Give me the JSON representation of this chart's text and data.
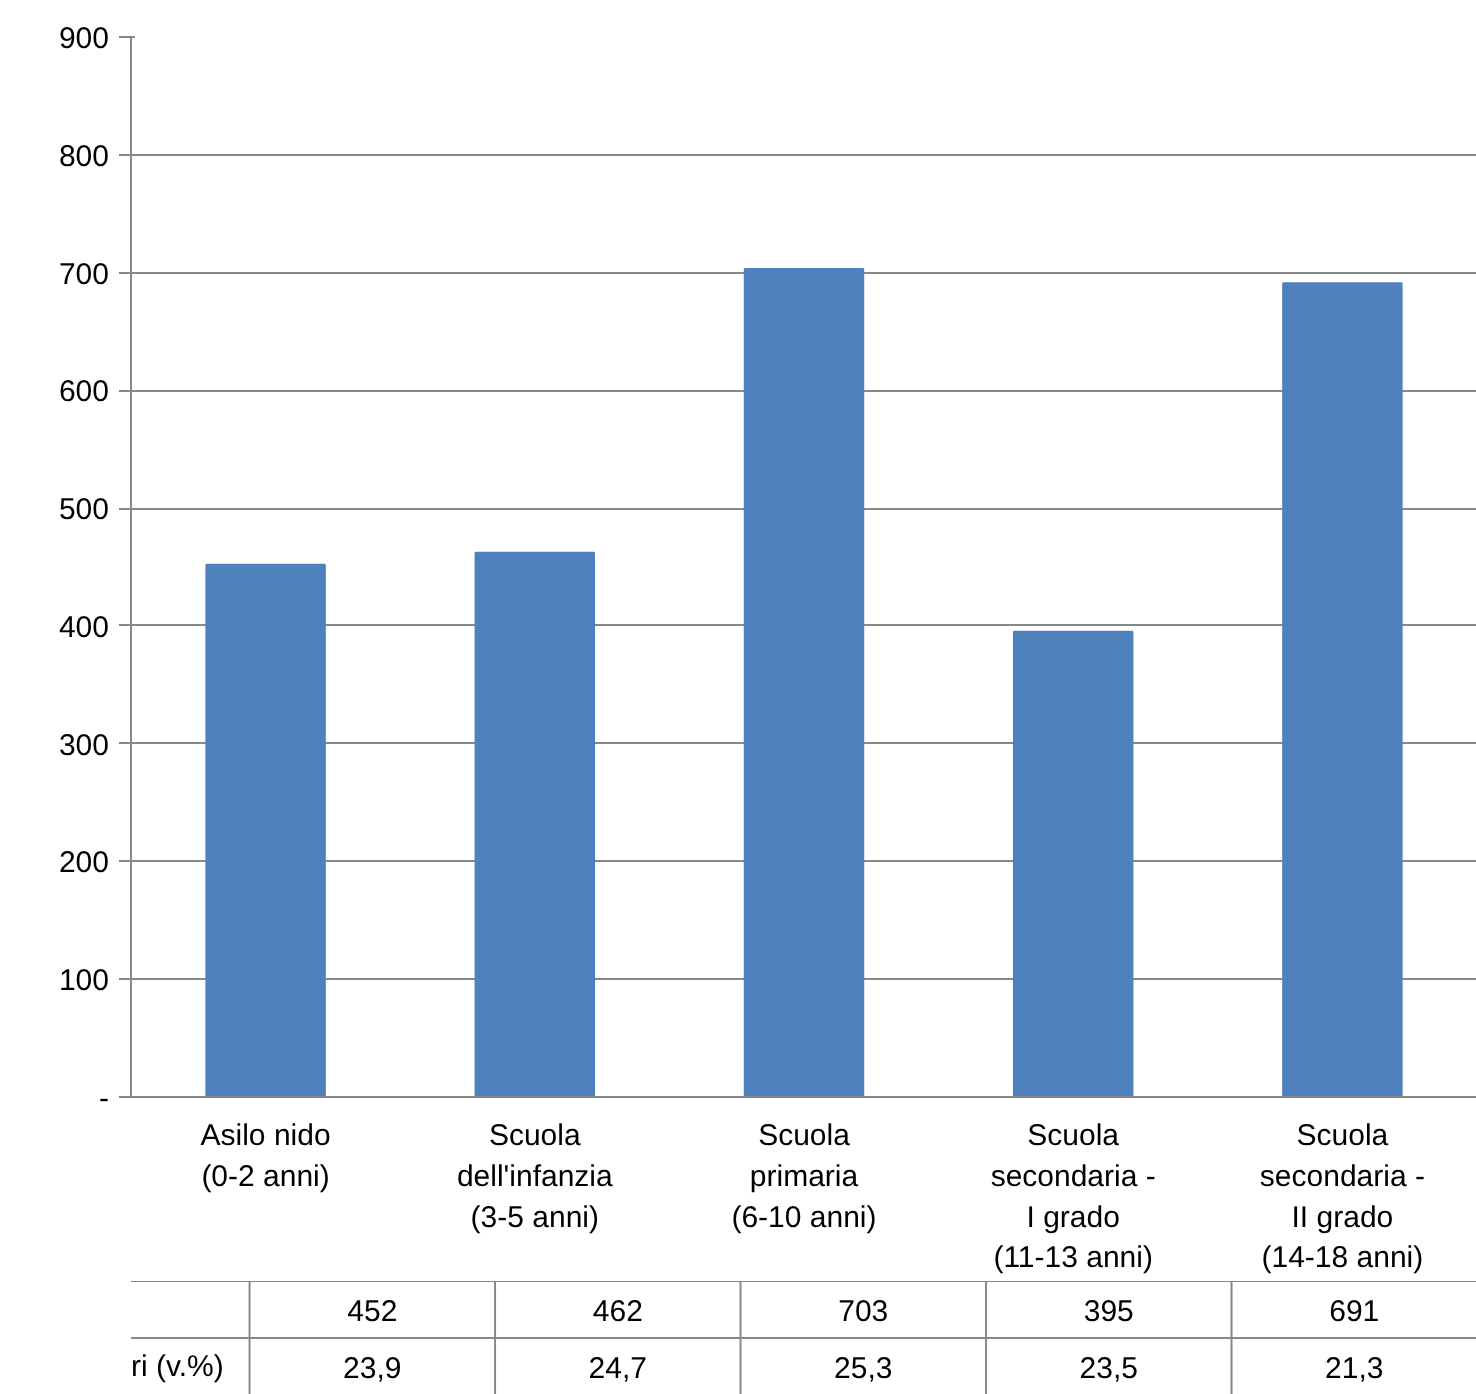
{
  "chart_data": {
    "type": "bar",
    "categories": [
      "Asilo nido\n(0-2 anni)",
      "Scuola\ndell'infanzia\n(3-5 anni)",
      "Scuola\nprimaria\n(6-10 anni)",
      "Scuola\nsecondaria -\nI grado\n(11-13 anni)",
      "Scuola\nsecondaria -\nII grado\n(14-18 anni)"
    ],
    "values": [
      452,
      462,
      703,
      395,
      691
    ],
    "color": "#4f81bd",
    "ylim": [
      0,
      900
    ],
    "yticks": [
      {
        "value": 0,
        "label": "-"
      },
      100,
      200,
      300,
      400,
      500,
      600,
      700,
      800,
      900
    ],
    "grid": "y",
    "data_labels": true,
    "annotations": [
      "ri (v.%)",
      "23,9",
      "24,7",
      "25,3",
      "23,5",
      "21,3"
    ]
  }
}
